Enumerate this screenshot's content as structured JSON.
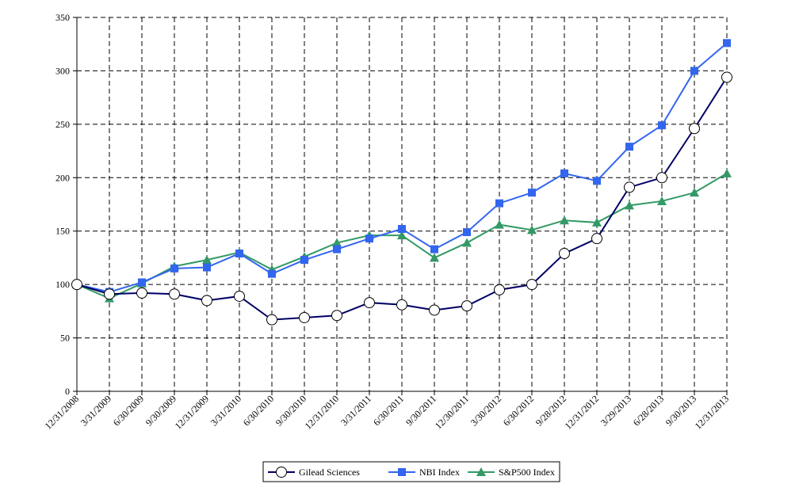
{
  "chart_data": {
    "type": "line",
    "title": "",
    "xlabel": "",
    "ylabel": "",
    "ylim": [
      0,
      350
    ],
    "yticks": [
      0,
      50,
      100,
      150,
      200,
      250,
      300,
      350
    ],
    "grid": true,
    "legend_position": "bottom-center",
    "categories": [
      "12/31/2008",
      "3/31/2009",
      "6/30/2009",
      "9/30/2009",
      "12/31/2009",
      "3/31/2010",
      "6/30/2010",
      "9/30/2010",
      "12/31/2010",
      "3/31/2011",
      "6/30/2011",
      "9/30/2011",
      "12/30/2011",
      "3/30/2012",
      "6/30/2012",
      "9/28/2012",
      "12/31/2012",
      "3/29/2013",
      "6/28/2013",
      "9/30/2013",
      "12/31/2013"
    ],
    "series": [
      {
        "name": "Gilead Sciences",
        "color": "#000066",
        "marker": "circle",
        "values": [
          100,
          91,
          92,
          91,
          85,
          89,
          67,
          69,
          71,
          83,
          81,
          76,
          80,
          95,
          100,
          129,
          143,
          191,
          200,
          246,
          294
        ]
      },
      {
        "name": "NBI Index",
        "color": "#3366EE",
        "marker": "square",
        "values": [
          100,
          93,
          102,
          115,
          116,
          129,
          110,
          123,
          133,
          143,
          152,
          133,
          149,
          176,
          186,
          204,
          197,
          229,
          249,
          300,
          326
        ]
      },
      {
        "name": "S&P500 Index",
        "color": "#339966",
        "marker": "triangle",
        "values": [
          100,
          87,
          101,
          117,
          123,
          130,
          114,
          126,
          139,
          146,
          146,
          125,
          139,
          156,
          151,
          160,
          158,
          174,
          178,
          186,
          204
        ]
      }
    ]
  }
}
